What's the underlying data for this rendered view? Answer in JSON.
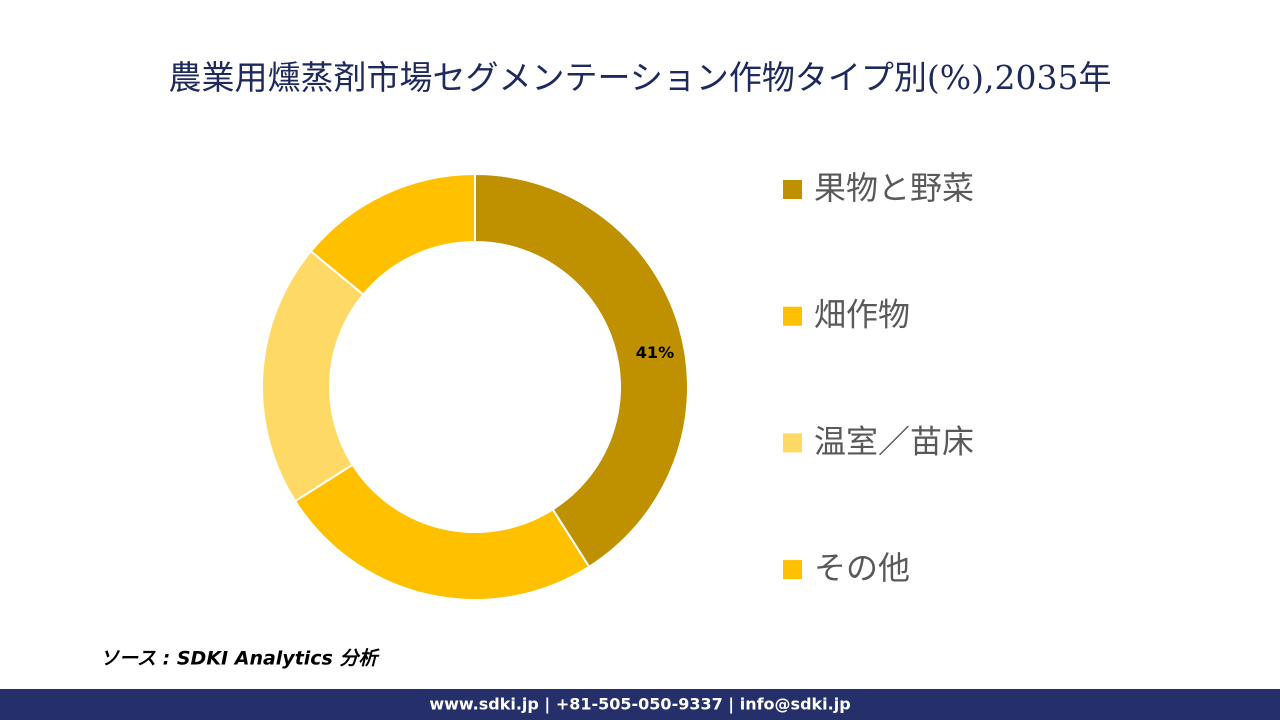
{
  "chart_data": {
    "type": "donut",
    "title": "農業用燻蒸剤市場セグメンテーション作物タイプ別(%),2035年",
    "categories": [
      "果物と野菜",
      "畑作物",
      "温室／苗床",
      "その他"
    ],
    "values": [
      41,
      25,
      20,
      14
    ],
    "value_labels": [
      "41%",
      null,
      null,
      null
    ],
    "colors": [
      "#bf9000",
      "#ffc000",
      "#ffd966",
      "#ffc000"
    ]
  },
  "source": "ソース : SDKI Analytics 分析",
  "footer": "www.sdki.jp | +81-505-050-9337 | info@sdki.jp"
}
